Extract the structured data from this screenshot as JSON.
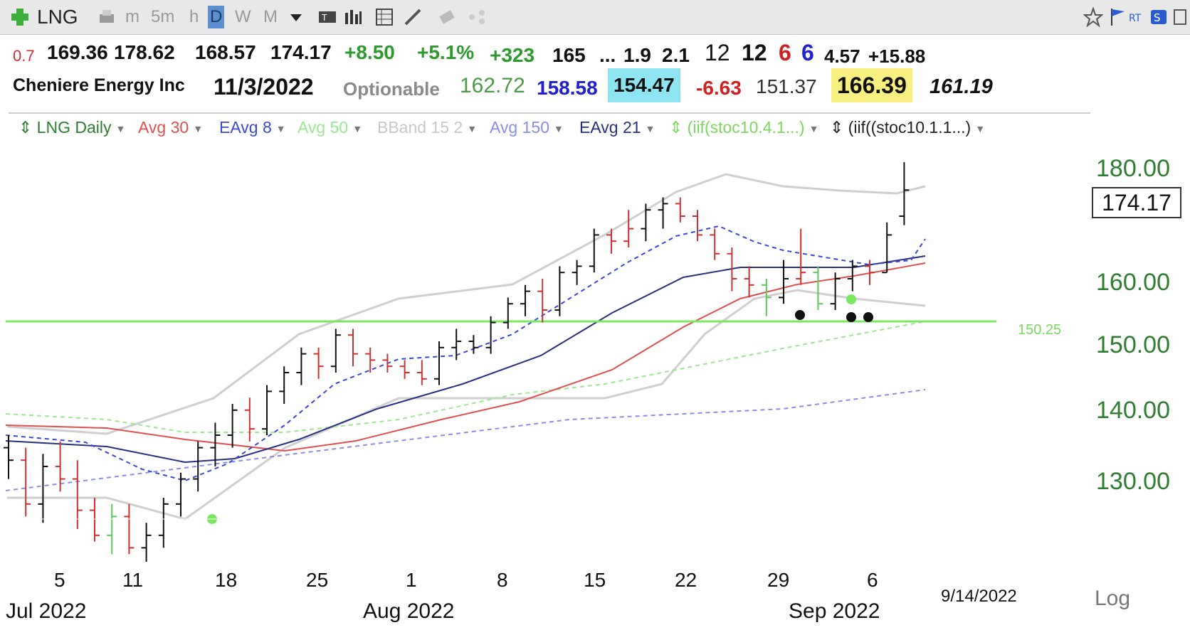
{
  "toolbar": {
    "symbol": "LNG",
    "timeframes": [
      "m",
      "5m",
      "h",
      "D",
      "W",
      "M"
    ]
  },
  "quote_line1": {
    "small": "0.7",
    "open": "169.36",
    "high": "178.62",
    "low": "168.57",
    "close": "174.17",
    "change": "+8.50",
    "change_pct": "+5.1%",
    "v1": "+323",
    "v2": "165",
    "ellipsis": "...",
    "v3": "1.9",
    "v4": "2.1",
    "v5": "12",
    "v6": "12",
    "v7": "6",
    "v8": "6",
    "v9": "4.57",
    "v10": "+15.88"
  },
  "quote_line2": {
    "name": "Cheniere Energy Inc",
    "date": "11/3/2022",
    "optionable": "Optionable",
    "p1": "162.72",
    "p2": "158.58",
    "p3": "154.47",
    "p4": "-6.63",
    "p5": "151.37",
    "p6": "166.39",
    "p7": "161.19"
  },
  "legend": {
    "series": "LNG Daily",
    "avg30": "Avg 30",
    "eavg8": "EAvg 8",
    "avg50": "Avg 50",
    "bband": "BBand 15 2",
    "avg150": "Avg 150",
    "eavg21": "EAvg 21",
    "stoc1": "(iif(stoc10.4.1...)",
    "stoc2": "(iif((stoc10.1.1...)"
  },
  "colors": {
    "avg30": "#e05050",
    "eavg8": "#3a48d8",
    "avg50": "#9ae890",
    "bband": "#cfcfcf",
    "avg150": "#8a8ee8",
    "eavg21": "#283080",
    "level_line": "#7ce860",
    "axis_text": "#2e7d32"
  },
  "yaxis": {
    "ticks": [
      "180.00",
      "160.00",
      "150.00",
      "140.00",
      "130.00"
    ],
    "last_price": "174.17",
    "level_label": "150.25"
  },
  "xaxis": {
    "days": [
      "5",
      "11",
      "18",
      "25",
      "1",
      "8",
      "15",
      "22",
      "29",
      "6"
    ],
    "months": [
      "Jul 2022",
      "Aug 2022",
      "Sep 2022"
    ],
    "cursor_date": "9/14/2022",
    "log_label": "Log"
  },
  "chart_data": {
    "type": "line",
    "title": "",
    "level": 150.25,
    "bars": [
      {
        "x": "Jul 1",
        "o": 133,
        "h": 135,
        "l": 128,
        "c": 131,
        "d": "up"
      },
      {
        "x": "Jul 5",
        "o": 131,
        "h": 133,
        "l": 122,
        "c": 124,
        "d": "down"
      },
      {
        "x": "Jul 6",
        "o": 124,
        "h": 132,
        "l": 121,
        "c": 130,
        "d": "up"
      },
      {
        "x": "Jul 7",
        "o": 130,
        "h": 134,
        "l": 126,
        "c": 128,
        "d": "down"
      },
      {
        "x": "Jul 8",
        "o": 128,
        "h": 131,
        "l": 120,
        "c": 123,
        "d": "down"
      },
      {
        "x": "Jul 11",
        "o": 123,
        "h": 125,
        "l": 118,
        "c": 119,
        "d": "down"
      },
      {
        "x": "Jul 12",
        "o": 119,
        "h": 124,
        "l": 116,
        "c": 122,
        "d": "green"
      },
      {
        "x": "Jul 13",
        "o": 122,
        "h": 124,
        "l": 116,
        "c": 117,
        "d": "down"
      },
      {
        "x": "Jul 14",
        "o": 117,
        "h": 121,
        "l": 114,
        "c": 119,
        "d": "up"
      },
      {
        "x": "Jul 15",
        "o": 119,
        "h": 125,
        "l": 117,
        "c": 124,
        "d": "up"
      },
      {
        "x": "Jul 18",
        "o": 124,
        "h": 129,
        "l": 122,
        "c": 128,
        "d": "up"
      },
      {
        "x": "Jul 19",
        "o": 128,
        "h": 134,
        "l": 126,
        "c": 133,
        "d": "up"
      },
      {
        "x": "Jul 20",
        "o": 133,
        "h": 137,
        "l": 130,
        "c": 135,
        "d": "up"
      },
      {
        "x": "Jul 21",
        "o": 135,
        "h": 140,
        "l": 133,
        "c": 139,
        "d": "up"
      },
      {
        "x": "Jul 22",
        "o": 139,
        "h": 141,
        "l": 134,
        "c": 136,
        "d": "down"
      },
      {
        "x": "Jul 25",
        "o": 136,
        "h": 143,
        "l": 135,
        "c": 142,
        "d": "up"
      },
      {
        "x": "Jul 26",
        "o": 142,
        "h": 146,
        "l": 140,
        "c": 145,
        "d": "up"
      },
      {
        "x": "Jul 27",
        "o": 145,
        "h": 149,
        "l": 143,
        "c": 148,
        "d": "up"
      },
      {
        "x": "Jul 28",
        "o": 148,
        "h": 149,
        "l": 144,
        "c": 146,
        "d": "down"
      },
      {
        "x": "Jul 29",
        "o": 146,
        "h": 152,
        "l": 145,
        "c": 151,
        "d": "up"
      },
      {
        "x": "Aug 1",
        "o": 151,
        "h": 152,
        "l": 146,
        "c": 148,
        "d": "down"
      },
      {
        "x": "Aug 2",
        "o": 148,
        "h": 149,
        "l": 145,
        "c": 147,
        "d": "down"
      },
      {
        "x": "Aug 3",
        "o": 147,
        "h": 148,
        "l": 145,
        "c": 146,
        "d": "down"
      },
      {
        "x": "Aug 4",
        "o": 146,
        "h": 147,
        "l": 144,
        "c": 145,
        "d": "down"
      },
      {
        "x": "Aug 5",
        "o": 145,
        "h": 147,
        "l": 143,
        "c": 144,
        "d": "down"
      },
      {
        "x": "Aug 8",
        "o": 144,
        "h": 150,
        "l": 143,
        "c": 149,
        "d": "up"
      },
      {
        "x": "Aug 9",
        "o": 149,
        "h": 152,
        "l": 147,
        "c": 150,
        "d": "up"
      },
      {
        "x": "Aug 10",
        "o": 150,
        "h": 151,
        "l": 148,
        "c": 149,
        "d": "up"
      },
      {
        "x": "Aug 11",
        "o": 149,
        "h": 154,
        "l": 148,
        "c": 153,
        "d": "up"
      },
      {
        "x": "Aug 12",
        "o": 153,
        "h": 157,
        "l": 152,
        "c": 156,
        "d": "up"
      },
      {
        "x": "Aug 15",
        "o": 156,
        "h": 159,
        "l": 154,
        "c": 158,
        "d": "up"
      },
      {
        "x": "Aug 16",
        "o": 158,
        "h": 160,
        "l": 153,
        "c": 155,
        "d": "down"
      },
      {
        "x": "Aug 17",
        "o": 155,
        "h": 162,
        "l": 154,
        "c": 161,
        "d": "up"
      },
      {
        "x": "Aug 18",
        "o": 161,
        "h": 163,
        "l": 159,
        "c": 162,
        "d": "up"
      },
      {
        "x": "Aug 19",
        "o": 162,
        "h": 168,
        "l": 161,
        "c": 167,
        "d": "up"
      },
      {
        "x": "Aug 22",
        "o": 167,
        "h": 168,
        "l": 164,
        "c": 166,
        "d": "down"
      },
      {
        "x": "Aug 23",
        "o": 166,
        "h": 171,
        "l": 165,
        "c": 168,
        "d": "down"
      },
      {
        "x": "Aug 24",
        "o": 168,
        "h": 172,
        "l": 166,
        "c": 171,
        "d": "up"
      },
      {
        "x": "Aug 25",
        "o": 171,
        "h": 173,
        "l": 168,
        "c": 172,
        "d": "up"
      },
      {
        "x": "Aug 26",
        "o": 172,
        "h": 173,
        "l": 169,
        "c": 170,
        "d": "down"
      },
      {
        "x": "Aug 29",
        "o": 170,
        "h": 171,
        "l": 166,
        "c": 167,
        "d": "down"
      },
      {
        "x": "Aug 30",
        "o": 167,
        "h": 168,
        "l": 163,
        "c": 164,
        "d": "down"
      },
      {
        "x": "Aug 31",
        "o": 164,
        "h": 165,
        "l": 158,
        "c": 160,
        "d": "down"
      },
      {
        "x": "Sep 1",
        "o": 160,
        "h": 162,
        "l": 157,
        "c": 159,
        "d": "down"
      },
      {
        "x": "Sep 2",
        "o": 159,
        "h": 160,
        "l": 154,
        "c": 157,
        "d": "green"
      },
      {
        "x": "Sep 6",
        "o": 157,
        "h": 163,
        "l": 156,
        "c": 160,
        "d": "up"
      },
      {
        "x": "Sep 7",
        "o": 160,
        "h": 168,
        "l": 159,
        "c": 161,
        "d": "down"
      },
      {
        "x": "Sep 8",
        "o": 161,
        "h": 162,
        "l": 155,
        "c": 156,
        "d": "green"
      },
      {
        "x": "Sep 9",
        "o": 156,
        "h": 161,
        "l": 155,
        "c": 160,
        "d": "up"
      },
      {
        "x": "Sep 12",
        "o": 160,
        "h": 163,
        "l": 158,
        "c": 162,
        "d": "up"
      },
      {
        "x": "Sep 13",
        "o": 162,
        "h": 163,
        "l": 159,
        "c": 161,
        "d": "down"
      },
      {
        "x": "Sep 14",
        "o": 161,
        "h": 169,
        "l": 161,
        "c": 167,
        "d": "up"
      },
      {
        "x": "Sep 15",
        "o": 170,
        "h": 178.62,
        "l": 168.57,
        "c": 174.17,
        "d": "up"
      }
    ]
  }
}
